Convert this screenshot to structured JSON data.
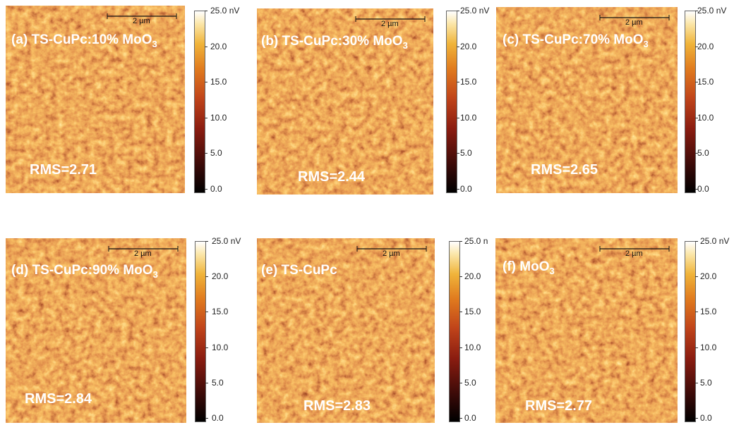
{
  "panels": [
    {
      "label": "(a) TS-CuPc:10% MoO",
      "label_sub": "3",
      "rms": "RMS=2.71",
      "scale_bar": "2 µm",
      "colorbar_ticks": [
        "25.0 nV",
        "20.0",
        "15.0",
        "10.0",
        "5.0",
        "0.0"
      ]
    },
    {
      "label": "(b) TS-CuPc:30% MoO",
      "label_sub": "3",
      "rms": "RMS=2.44",
      "scale_bar": "2 µm",
      "colorbar_ticks": [
        "25.0 nV",
        "20.0",
        "15.0",
        "10.0",
        "5.0",
        "0.0"
      ]
    },
    {
      "label": "(c) TS-CuPc:70% MoO",
      "label_sub": "3",
      "rms": "RMS=2.65",
      "scale_bar": "2 µm",
      "colorbar_ticks": [
        "25.0 nV",
        "20.0",
        "15.0",
        "10.0",
        "5.0",
        "0.0"
      ]
    },
    {
      "label": "(d) TS-CuPc:90% MoO",
      "label_sub": "3",
      "rms": "RMS=2.84",
      "scale_bar": "2 µm",
      "colorbar_ticks": [
        "25.0 nV",
        "20.0",
        "15.0",
        "10.0",
        "5.0",
        "0.0"
      ]
    },
    {
      "label": "(e) TS-CuPc",
      "rms": "RMS=2.83",
      "scale_bar": "2 µm",
      "colorbar_ticks": [
        "25.0 n",
        "20.0",
        "15.0",
        "10.0",
        "5.0",
        "0.0"
      ]
    },
    {
      "label": "(f) MoO",
      "label_sub": "3",
      "rms": "RMS=2.77",
      "scale_bar": "2 µm",
      "colorbar_ticks": [
        "25.0 nV",
        "20.0",
        "15.0",
        "10.0",
        "5.0",
        "0.0"
      ]
    }
  ]
}
